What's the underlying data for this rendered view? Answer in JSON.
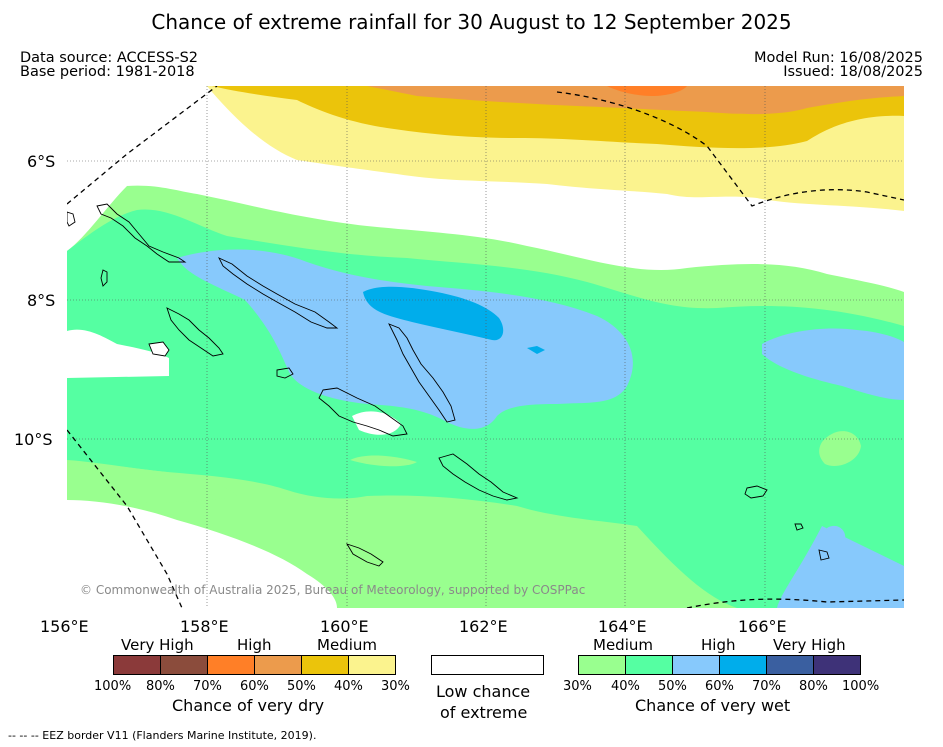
{
  "title": "Chance of extreme rainfall for 30 August to 12 September 2025",
  "header": {
    "data_source": "Data source: ACCESS-S2",
    "base_period": "Base period: 1981-2018",
    "model_run": "Model Run: 16/08/2025",
    "issued": "Issued: 18/08/2025"
  },
  "map": {
    "lat_labels": [
      "6°S",
      "8°S",
      "10°S"
    ],
    "lon_labels": [
      "156°E",
      "158°E",
      "160°E",
      "162°E",
      "164°E",
      "166°E"
    ],
    "watermark": "© Commonwealth of Australia 2025, Bureau of Meteorology, supported by COSPPac"
  },
  "legend": {
    "dry": {
      "groups": [
        "Very High",
        "High",
        "Medium"
      ],
      "colors": [
        "#8b3a3a",
        "#8b4c3c",
        "#ff7f27",
        "#ec9b4c",
        "#ebc40b",
        "#fbf38e"
      ],
      "ticks": [
        "100%",
        "80%",
        "70%",
        "60%",
        "50%",
        "40%",
        "30%"
      ],
      "caption": "Chance of very dry"
    },
    "low": {
      "line1": "Low chance",
      "line2": "of extreme"
    },
    "wet": {
      "groups": [
        "Medium",
        "High",
        "Very High"
      ],
      "colors": [
        "#99ff8f",
        "#55ffa2",
        "#87c9fc",
        "#00adeb",
        "#3a5fa0",
        "#3e3278"
      ],
      "ticks": [
        "30%",
        "40%",
        "50%",
        "60%",
        "70%",
        "80%",
        "100%"
      ],
      "caption": "Chance of very wet"
    }
  },
  "footer": {
    "eez_note": "-- -- -- EEZ border V11 (Flanders Marine Institute, 2019)."
  }
}
